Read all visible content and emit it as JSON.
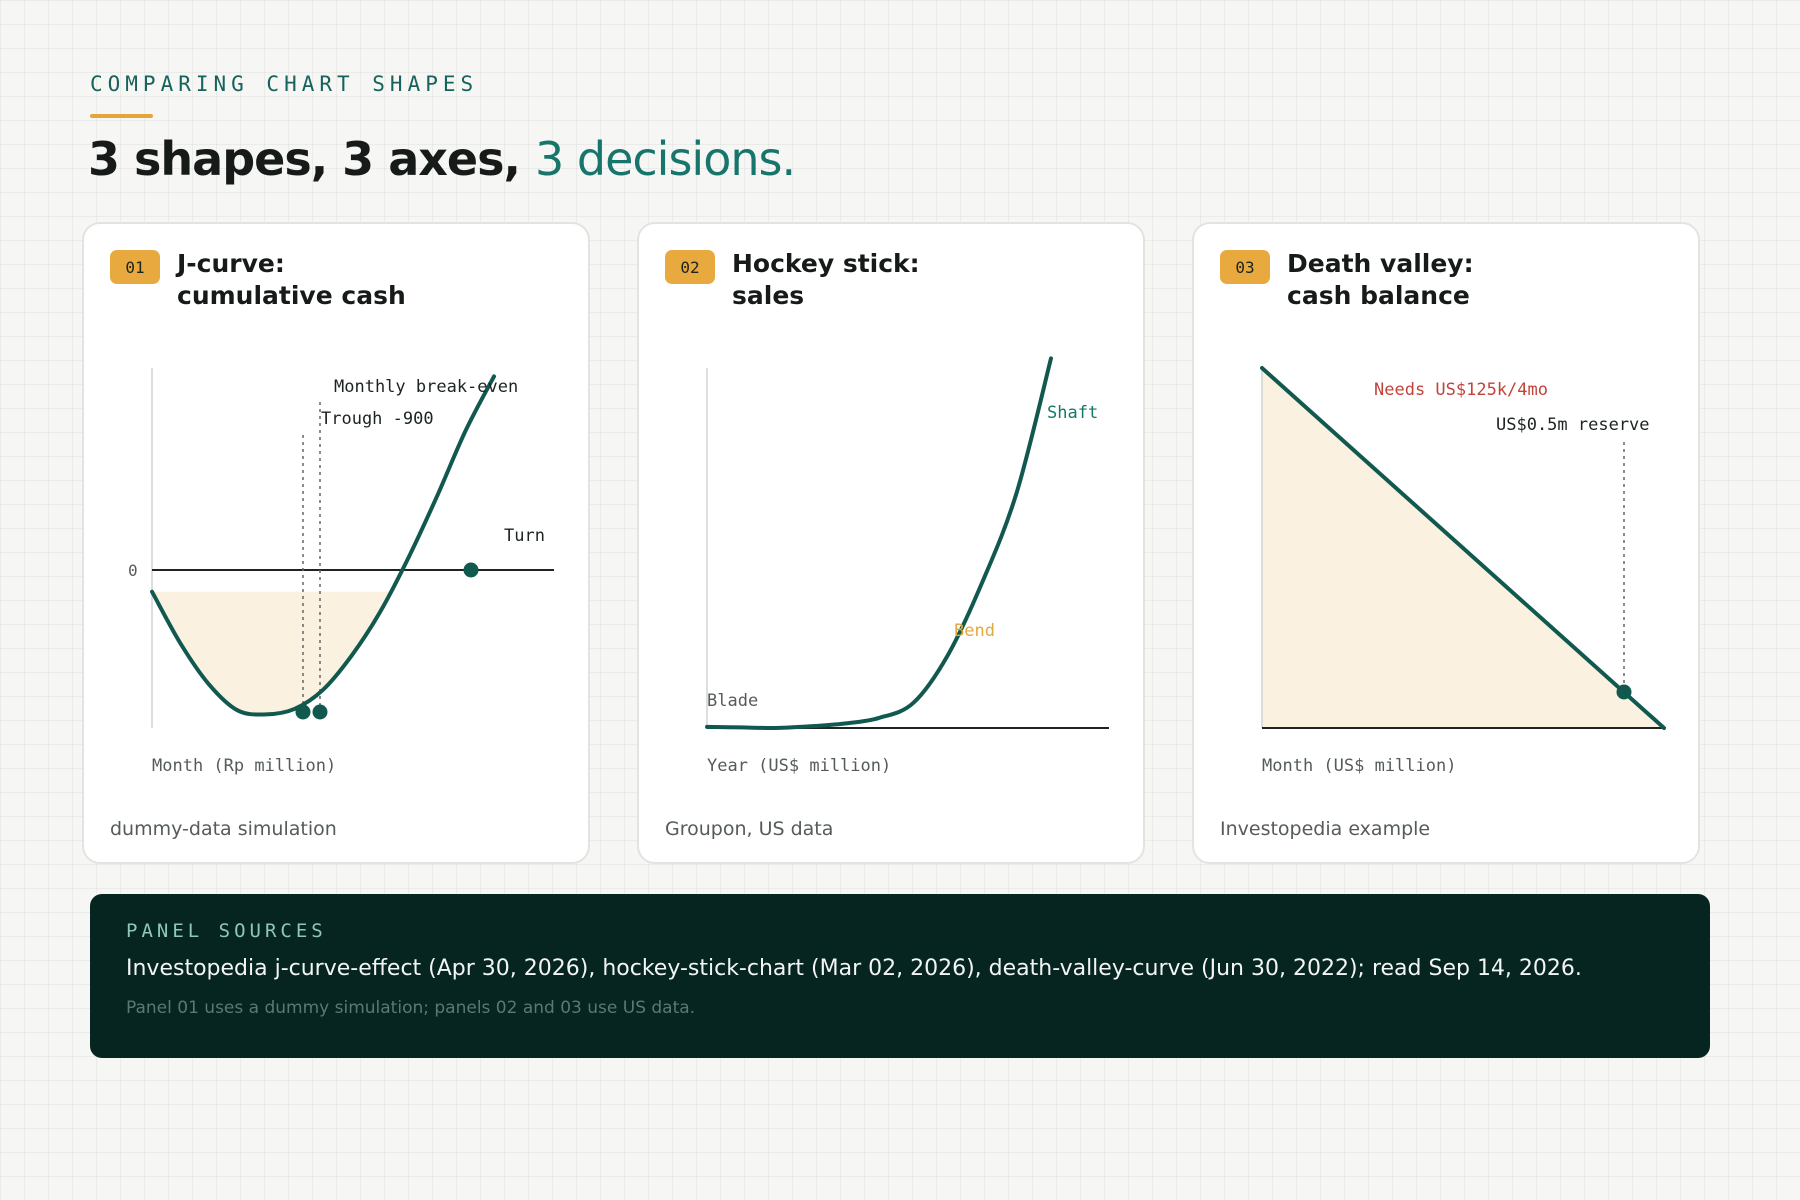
{
  "header": {
    "eyebrow": "COMPARING CHART SHAPES",
    "title_main": "3 shapes, 3 axes,",
    "title_accent": "3 decisions."
  },
  "colors": {
    "accent": "#17756b",
    "line": "#11594f",
    "fill": "#faf1e1",
    "badge": "#e8a93f",
    "bend": "#e0a83f",
    "warning": "#c1443a",
    "panel": "#062420"
  },
  "panels": [
    {
      "number": "01",
      "title_line1": "J-curve:",
      "title_line2": "cumulative cash",
      "footnote": "dummy-data simulation"
    },
    {
      "number": "02",
      "title_line1": "Hockey stick:",
      "title_line2": "sales",
      "footnote": "Groupon, US data"
    },
    {
      "number": "03",
      "title_line1": "Death valley:",
      "title_line2": "cash balance",
      "footnote": "Investopedia example"
    }
  ],
  "chart_data": [
    {
      "type": "area",
      "xlabel": "Month (Rp million)",
      "y_ticks": [
        "0"
      ],
      "x": [
        0,
        1,
        2,
        3,
        4,
        5,
        6,
        7,
        8,
        9,
        10,
        11,
        12
      ],
      "y": [
        0,
        -380,
        -680,
        -870,
        -900,
        -860,
        -720,
        -470,
        -150,
        250,
        700,
        1180,
        1580
      ],
      "ylim": [
        -1000,
        1700
      ],
      "annotations": {
        "trough": "Trough -900",
        "break_even": "Monthly break-even",
        "turn": "Turn"
      },
      "fill_below_zero": true
    },
    {
      "type": "line",
      "xlabel": "Year (US$ million)",
      "x": [
        0,
        1,
        2,
        3,
        4,
        5,
        6,
        7,
        8,
        9,
        10
      ],
      "y": [
        2,
        1,
        0,
        3,
        8,
        18,
        45,
        130,
        260,
        420,
        660
      ],
      "ylim": [
        0,
        700
      ],
      "annotations": {
        "blade": "Blade",
        "bend": "Bend",
        "shaft": "Shaft"
      }
    },
    {
      "type": "area",
      "xlabel": "Month (US$ million)",
      "x": [
        0,
        10
      ],
      "y": [
        5,
        0
      ],
      "ylim": [
        0,
        5
      ],
      "annotations": {
        "burn": "Needs US$125k/4mo",
        "reserve": "US$0.5m reserve"
      },
      "reserve_value": 0.5
    }
  ],
  "sources": {
    "label": "PANEL SOURCES",
    "text": "Investopedia j-curve-effect (Apr 30, 2026), hockey-stick-chart (Mar 02, 2026), death-valley-curve (Jun 30, 2022); read Sep 14, 2026.",
    "note": "Panel 01 uses a dummy simulation; panels 02 and 03 use US data."
  }
}
